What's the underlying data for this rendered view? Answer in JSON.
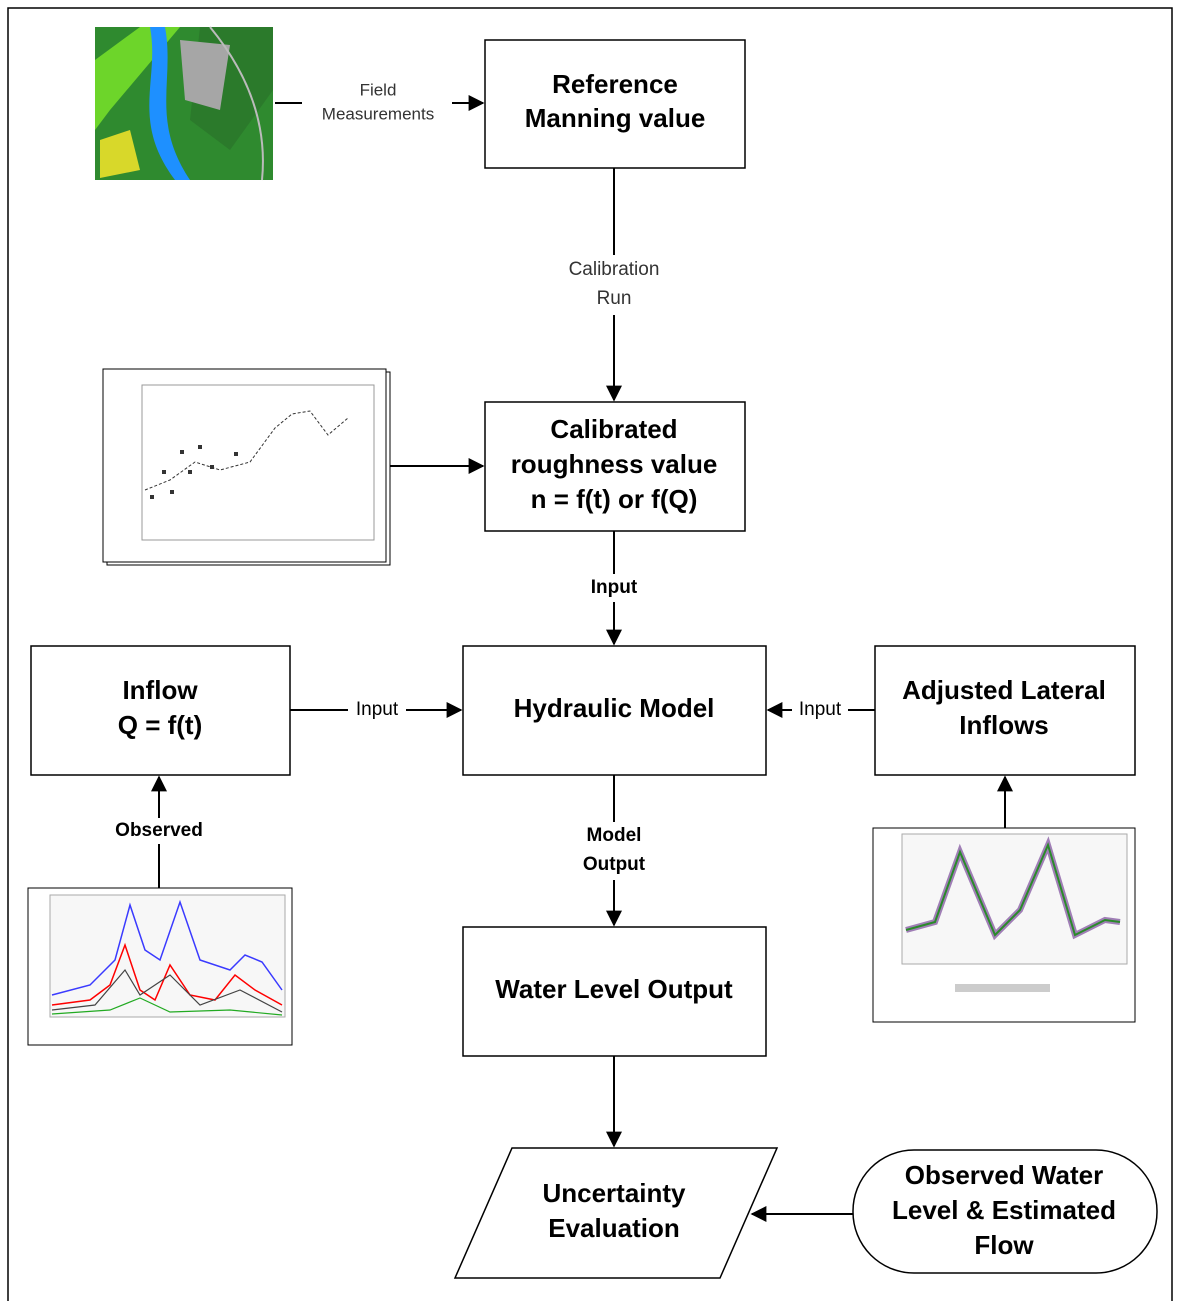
{
  "nodes": [
    {
      "lines": [
        "Reference",
        "Manning value"
      ]
    },
    {
      "lines": [
        "Calibrated",
        "roughness value",
        "n = f(t) or f(Q)"
      ]
    },
    {
      "lines": [
        "Hydraulic Model"
      ]
    },
    {
      "lines": [
        "Inflow",
        "Q = f(t)"
      ]
    },
    {
      "lines": [
        "Adjusted Lateral",
        "Inflows"
      ]
    },
    {
      "lines": [
        "Water Level Output"
      ]
    },
    {
      "lines": [
        "Uncertainty",
        "Evaluation"
      ]
    },
    {
      "lines": [
        "Observed Water",
        "Level & Estimated",
        "Flow"
      ]
    }
  ],
  "edge_labels": [
    {
      "lines": [
        "Field",
        "Measurements"
      ]
    },
    {
      "lines": [
        "Calibration",
        "Run"
      ]
    },
    {
      "lines": [
        "Input"
      ]
    },
    {
      "lines": [
        "Input"
      ]
    },
    {
      "lines": [
        "Input"
      ]
    },
    {
      "lines": [
        "Observed"
      ]
    },
    {
      "lines": [
        "Model",
        "Output"
      ]
    }
  ]
}
